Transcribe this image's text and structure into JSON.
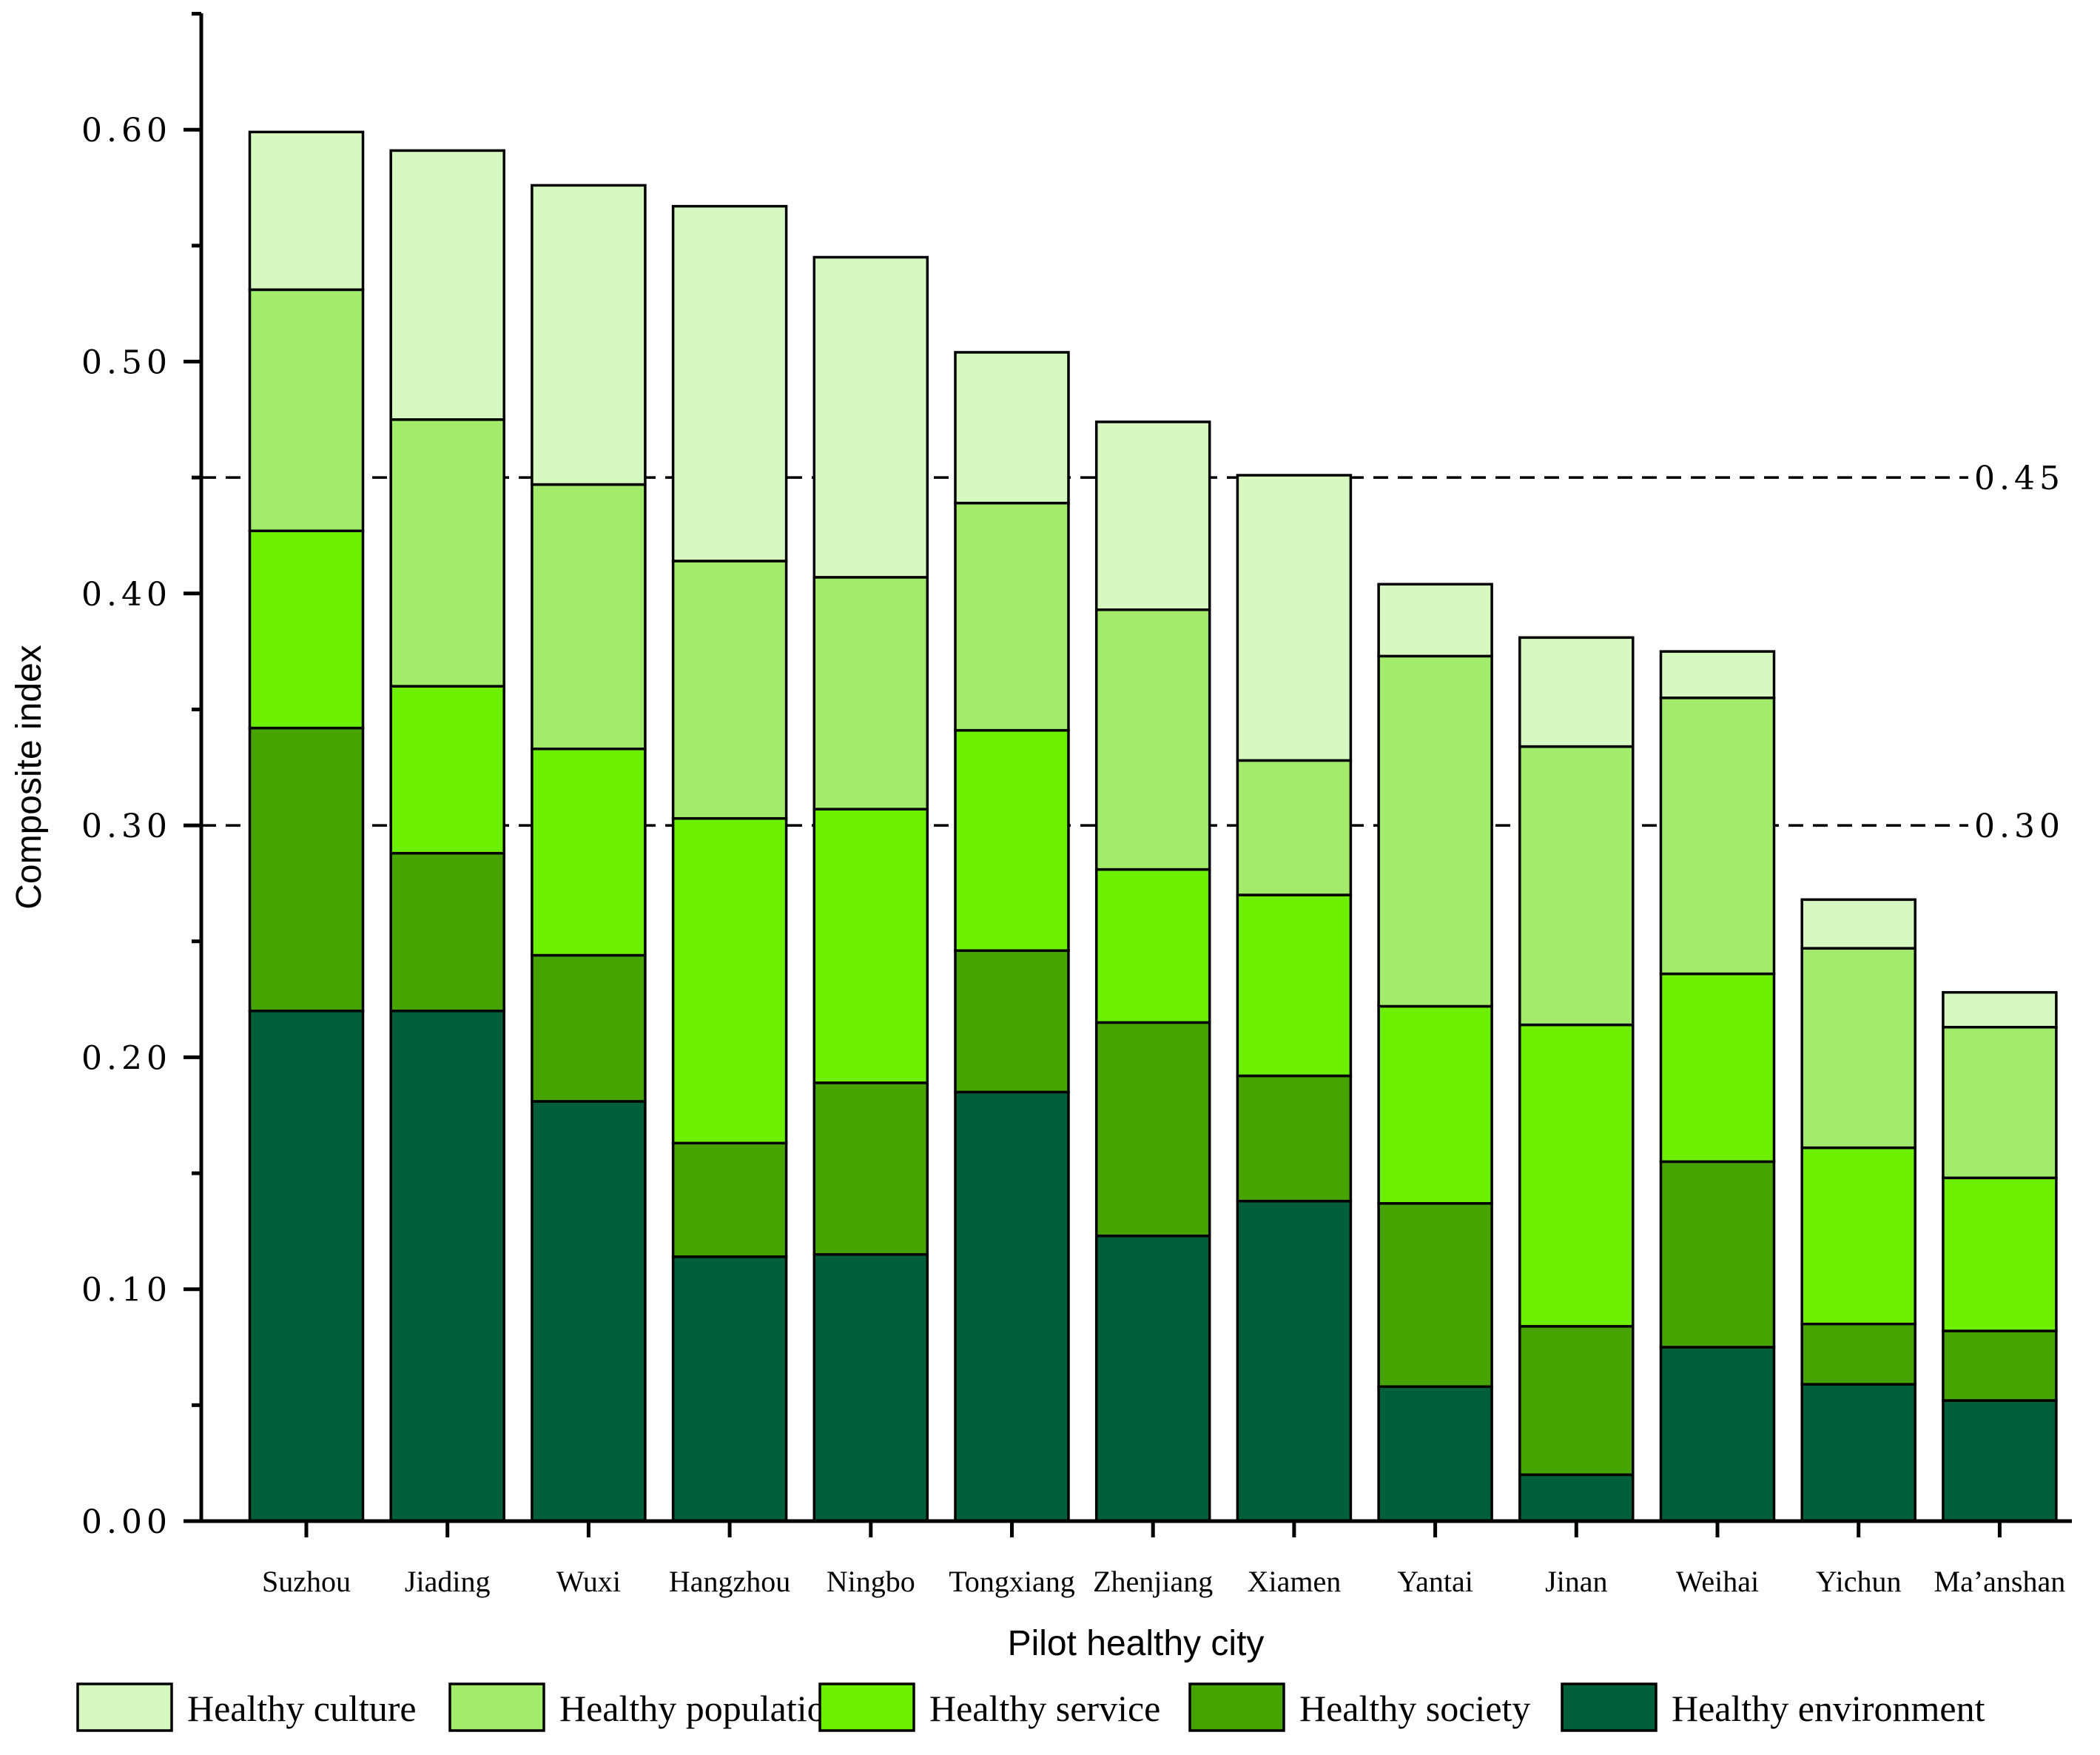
{
  "chart_data": {
    "type": "bar",
    "stacked": true,
    "title": "",
    "xlabel": "Pilot healthy city",
    "ylabel": "Composite index",
    "ylim": [
      0,
      0.65
    ],
    "yticks": [
      0.0,
      0.1,
      0.2,
      0.3,
      0.4,
      0.5,
      0.6
    ],
    "ytick_labels": [
      "0.00",
      "0.10",
      "0.20",
      "0.30",
      "0.40",
      "0.50",
      "0.60"
    ],
    "categories": [
      "Suzhou",
      "Jiading",
      "Wuxi",
      "Hangzhou",
      "Ningbo",
      "Tongxiang",
      "Zhenjiang",
      "Xiamen",
      "Yantai",
      "Jinan",
      "Weihai",
      "Yichun",
      "Ma’anshan"
    ],
    "series": [
      {
        "name": "Healthy environment",
        "color": "#005f3b",
        "values": [
          0.22,
          0.22,
          0.181,
          0.114,
          0.115,
          0.185,
          0.123,
          0.138,
          0.058,
          0.02,
          0.075,
          0.059,
          0.052
        ]
      },
      {
        "name": "Healthy society",
        "color": "#46a300",
        "values": [
          0.122,
          0.068,
          0.063,
          0.049,
          0.074,
          0.061,
          0.092,
          0.054,
          0.079,
          0.064,
          0.08,
          0.026,
          0.03
        ]
      },
      {
        "name": "Healthy service",
        "color": "#6df000",
        "values": [
          0.085,
          0.072,
          0.089,
          0.14,
          0.118,
          0.095,
          0.066,
          0.078,
          0.085,
          0.13,
          0.081,
          0.076,
          0.066
        ]
      },
      {
        "name": "Healthy population",
        "color": "#a3ec6b",
        "values": [
          0.104,
          0.115,
          0.114,
          0.111,
          0.1,
          0.098,
          0.112,
          0.058,
          0.151,
          0.12,
          0.119,
          0.086,
          0.065
        ]
      },
      {
        "name": "Healthy culture",
        "color": "#d7f8c0",
        "values": [
          0.068,
          0.116,
          0.129,
          0.153,
          0.138,
          0.065,
          0.081,
          0.123,
          0.031,
          0.047,
          0.02,
          0.021,
          0.015
        ]
      }
    ],
    "totals": [
      0.598,
      0.589,
      0.575,
      0.566,
      0.544,
      0.503,
      0.472,
      0.45,
      0.403,
      0.38,
      0.374,
      0.268,
      0.227
    ],
    "reference_lines": [
      {
        "value": 0.45,
        "label": "0.45",
        "style": "dashed"
      },
      {
        "value": 0.3,
        "label": "0.30",
        "style": "dashed"
      }
    ],
    "legend": {
      "placement": "bottom",
      "order": [
        "Healthy culture",
        "Healthy population",
        "Healthy service",
        "Healthy society",
        "Healthy environment"
      ]
    }
  }
}
